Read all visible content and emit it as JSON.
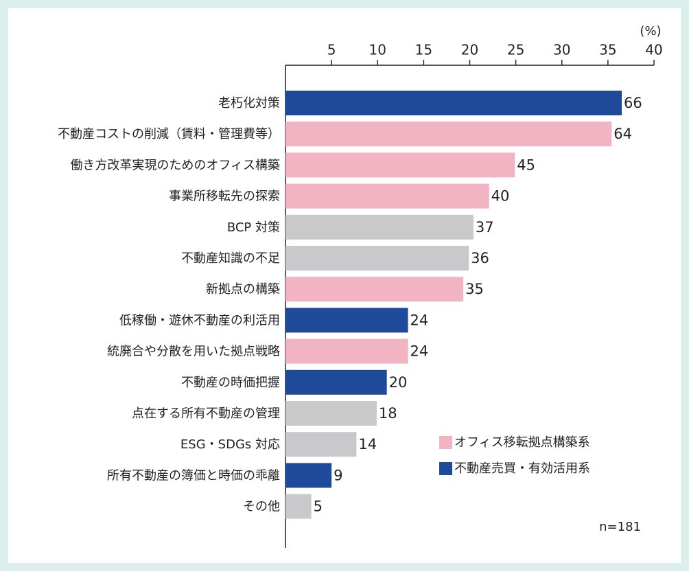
{
  "chart_data": {
    "type": "hbar",
    "categories": [
      "老朽化対策",
      "不動産コストの削減（賃料・管理費等）",
      "働き方改革実現のためのオフィス構築",
      "事業所移転先の探索",
      "BCP 対策",
      "不動産知識の不足",
      "新拠点の構築",
      "低稼働・遊休不動産の利活用",
      "統廃合や分散を用いた拠点戦略",
      "不動産の時価把握",
      "点在する所有不動産の管理",
      "ESG・SDGs 対応",
      "所有不動産の簿価と時価の乖離",
      "その他"
    ],
    "values": [
      36.5,
      35.4,
      24.9,
      22.1,
      20.4,
      19.9,
      19.3,
      13.3,
      13.3,
      11.0,
      9.9,
      7.7,
      5.0,
      2.8
    ],
    "value_labels": [
      "66",
      "64",
      "45",
      "40",
      "37",
      "36",
      "35",
      "24",
      "24",
      "20",
      "18",
      "14",
      "9",
      "5"
    ],
    "colors": [
      "#1f4a9a",
      "#f2b4c3",
      "#f2b4c3",
      "#f2b4c3",
      "#c9c9cb",
      "#c9c9cb",
      "#f2b4c3",
      "#1f4a9a",
      "#f2b4c3",
      "#1f4a9a",
      "#c9c9cb",
      "#c9c9cb",
      "#1f4a9a",
      "#c9c9cb"
    ],
    "legend": [
      {
        "name": "オフィス移転拠点構築系",
        "color": "#f2b4c3"
      },
      {
        "name": "不動産売買・有効活用系",
        "color": "#1f4a9a"
      }
    ],
    "xlim": [
      0,
      40
    ],
    "xticks": [
      5,
      10,
      15,
      20,
      25,
      30,
      35,
      40
    ],
    "unit_label": "(%)",
    "note": "n=181"
  }
}
